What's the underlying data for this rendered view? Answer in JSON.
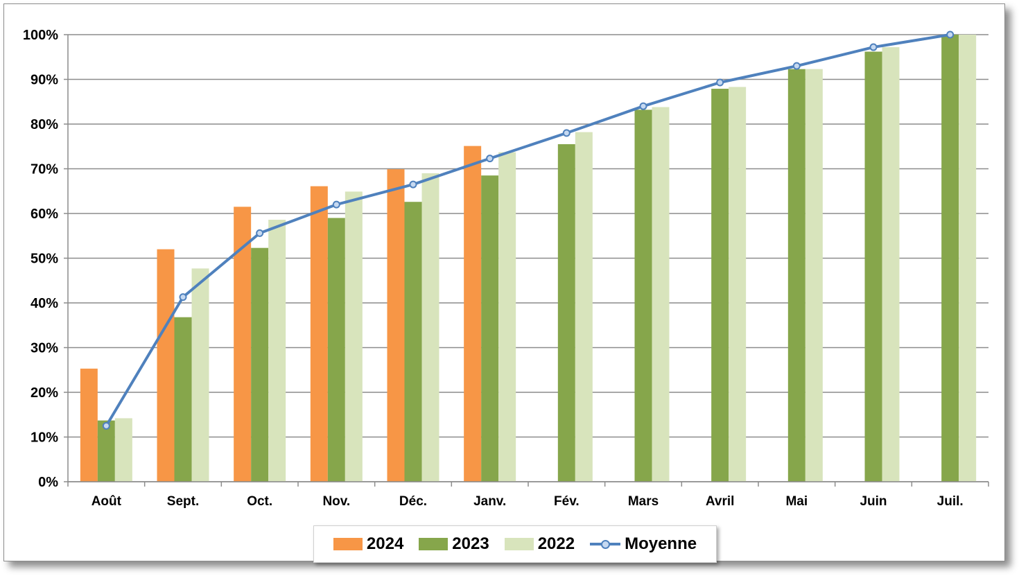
{
  "chart_data": {
    "type": "bar",
    "categories": [
      "Août",
      "Sept.",
      "Oct.",
      "Nov.",
      "Déc.",
      "Janv.",
      "Fév.",
      "Mars",
      "Avril",
      "Mai",
      "Juin",
      "Juil."
    ],
    "series": [
      {
        "name": "2024",
        "kind": "bar",
        "color": "#f79646",
        "values": [
          25.3,
          52.0,
          61.5,
          66.1,
          69.9,
          75.1,
          null,
          null,
          null,
          null,
          null,
          null
        ]
      },
      {
        "name": "2023",
        "kind": "bar",
        "color": "#86a64b",
        "values": [
          13.7,
          36.8,
          52.3,
          59.0,
          62.6,
          68.5,
          75.5,
          83.2,
          87.9,
          92.3,
          96.2,
          100
        ]
      },
      {
        "name": "2022",
        "kind": "bar",
        "color": "#d8e4bc",
        "values": [
          14.2,
          47.7,
          58.6,
          64.9,
          69.0,
          73.7,
          78.2,
          83.8,
          88.3,
          92.3,
          97.2,
          100
        ]
      },
      {
        "name": "Moyenne",
        "kind": "line",
        "color": "#4f81bd",
        "values": [
          12.5,
          41.3,
          55.6,
          62.0,
          66.5,
          72.3,
          78.0,
          84.0,
          89.3,
          93.0,
          97.2,
          100
        ]
      }
    ],
    "yticks": [
      "0%",
      "10%",
      "20%",
      "30%",
      "40%",
      "50%",
      "60%",
      "70%",
      "80%",
      "90%",
      "100%"
    ],
    "ylim": [
      0,
      100
    ],
    "grid": true,
    "legend_position": "bottom",
    "title": "",
    "xlabel": "",
    "ylabel": ""
  }
}
